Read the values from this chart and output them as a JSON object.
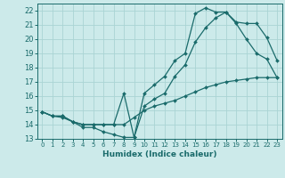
{
  "xlabel": "Humidex (Indice chaleur)",
  "bg_color": "#cceaea",
  "line_color": "#1a6b6b",
  "grid_color": "#aad4d4",
  "xlim": [
    -0.5,
    23.5
  ],
  "ylim": [
    13,
    22.5
  ],
  "xticks": [
    0,
    1,
    2,
    3,
    4,
    5,
    6,
    7,
    8,
    9,
    10,
    11,
    12,
    13,
    14,
    15,
    16,
    17,
    18,
    19,
    20,
    21,
    22,
    23
  ],
  "yticks": [
    13,
    14,
    15,
    16,
    17,
    18,
    19,
    20,
    21,
    22
  ],
  "line1_x": [
    0,
    1,
    2,
    3,
    4,
    5,
    6,
    7,
    8,
    9,
    10,
    11,
    12,
    13,
    14,
    15,
    16,
    17,
    18,
    19,
    20,
    21,
    22,
    23
  ],
  "line1_y": [
    14.9,
    14.6,
    14.5,
    14.2,
    13.8,
    13.8,
    13.5,
    13.3,
    13.1,
    13.1,
    16.2,
    16.8,
    17.4,
    18.5,
    19.0,
    21.8,
    22.2,
    21.9,
    21.9,
    21.1,
    20.0,
    19.0,
    18.6,
    17.3
  ],
  "line2_x": [
    0,
    1,
    2,
    3,
    4,
    5,
    6,
    7,
    8,
    9,
    10,
    11,
    12,
    13,
    14,
    15,
    16,
    17,
    18,
    19,
    20,
    21,
    22,
    23
  ],
  "line2_y": [
    14.9,
    14.6,
    14.6,
    14.2,
    14.0,
    14.0,
    14.0,
    14.0,
    16.2,
    13.1,
    15.3,
    15.8,
    16.2,
    17.4,
    18.2,
    19.8,
    20.8,
    21.5,
    21.9,
    21.2,
    21.1,
    21.1,
    20.1,
    18.5
  ],
  "line3_x": [
    0,
    1,
    2,
    3,
    4,
    5,
    6,
    7,
    8,
    9,
    10,
    11,
    12,
    13,
    14,
    15,
    16,
    17,
    18,
    19,
    20,
    21,
    22,
    23
  ],
  "line3_y": [
    14.9,
    14.6,
    14.6,
    14.2,
    14.0,
    14.0,
    14.0,
    14.0,
    14.0,
    14.5,
    15.0,
    15.3,
    15.5,
    15.7,
    16.0,
    16.3,
    16.6,
    16.8,
    17.0,
    17.1,
    17.2,
    17.3,
    17.3,
    17.3
  ]
}
